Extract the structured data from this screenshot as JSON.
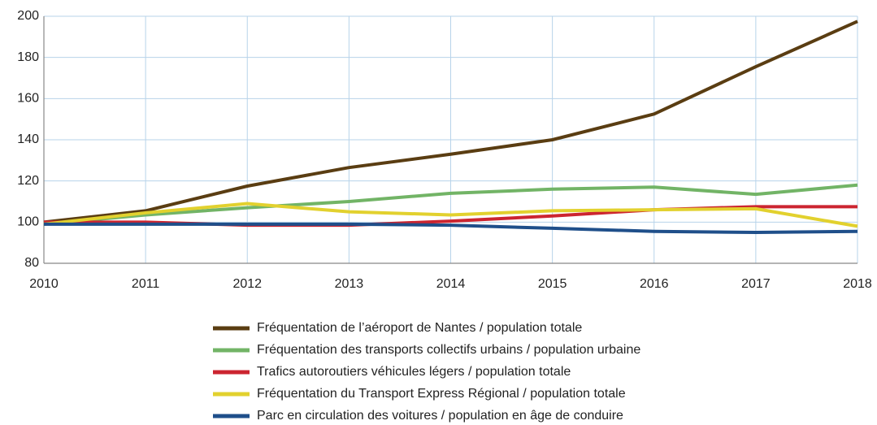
{
  "chart_data": {
    "type": "line",
    "x": [
      2010,
      2011,
      2012,
      2013,
      2014,
      2015,
      2016,
      2017,
      2018
    ],
    "xlim": [
      2010,
      2018
    ],
    "xticks": [
      2010,
      2011,
      2012,
      2013,
      2014,
      2015,
      2016,
      2017,
      2018
    ],
    "ylim": [
      80,
      200
    ],
    "yticks": [
      80,
      100,
      120,
      140,
      160,
      180,
      200
    ],
    "grid": true,
    "legend": "bottom",
    "series": [
      {
        "name": "Fréquentation de l’aéroport de Nantes / population totale",
        "color": "#5a3d12",
        "values": [
          100,
          105.5,
          117.5,
          126.5,
          133,
          140,
          152.5,
          175.5,
          197.5
        ]
      },
      {
        "name": "Fréquentation des transports collectifs urbains / population urbaine",
        "color": "#72b466",
        "values": [
          99,
          103.5,
          107,
          110,
          114,
          116,
          117,
          113.5,
          118
        ]
      },
      {
        "name": "Trafics autoroutiers véhicules légers / population totale",
        "color": "#cc2530",
        "values": [
          100,
          100,
          98.5,
          98.5,
          100.5,
          103,
          106,
          107.5,
          107.5
        ]
      },
      {
        "name": "Fréquentation du Transport Express Régional / population totale",
        "color": "#e2d12e",
        "values": [
          99,
          104.5,
          109,
          105,
          103.5,
          105.5,
          106,
          106.5,
          98
        ]
      },
      {
        "name": "Parc en circulation des voitures / population en âge de conduire",
        "color": "#1f4f8a",
        "values": [
          99,
          99,
          99,
          99,
          98.5,
          97,
          95.5,
          95,
          95.5
        ]
      }
    ]
  }
}
